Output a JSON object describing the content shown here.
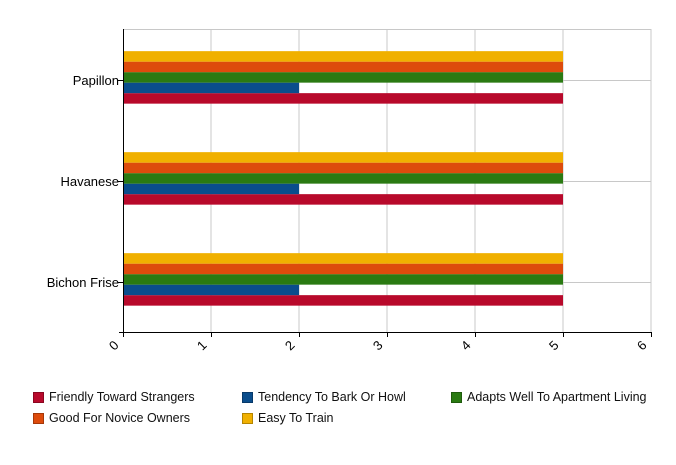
{
  "chart_data": {
    "type": "bar",
    "orientation": "horizontal",
    "title": "",
    "xlabel": "",
    "ylabel": "",
    "xlim": [
      0,
      6
    ],
    "x_ticks": [
      "0",
      "1",
      "2",
      "3",
      "4",
      "5",
      "6"
    ],
    "grid": true,
    "legend_position": "bottom",
    "categories": [
      "Bichon Frise",
      "Havanese",
      "Papillon"
    ],
    "series": [
      {
        "name": "Friendly Toward Strangers",
        "color": "#b8092b",
        "values": [
          5,
          5,
          5
        ]
      },
      {
        "name": "Tendency To Bark Or Howl",
        "color": "#0a4d8c",
        "values": [
          2,
          2,
          2
        ]
      },
      {
        "name": "Adapts Well To Apartment Living",
        "color": "#2a7a12",
        "values": [
          5,
          5,
          5
        ]
      },
      {
        "name": "Good For Novice Owners",
        "color": "#dd4b0c",
        "values": [
          5,
          5,
          5
        ]
      },
      {
        "name": "Easy To Train",
        "color": "#f0b000",
        "values": [
          5,
          5,
          5
        ]
      }
    ]
  }
}
